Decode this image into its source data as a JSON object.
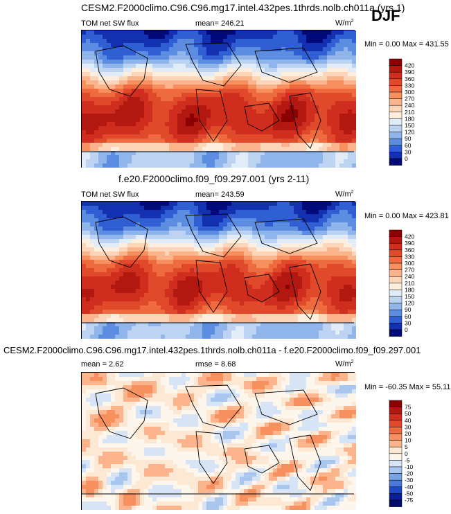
{
  "season": "DJF",
  "panels": [
    {
      "title": "CESM2.F2000climo.C96.C96.mg17.intel.432pes.1thrds.nolb.ch011a (yrs 1)",
      "variable": "TOM net SW flux",
      "stat_text": "mean= 246.21",
      "units": "W/m",
      "units_sup": "2",
      "minmax": "Min =   0.00 Max = 431.55",
      "levels": [
        "420",
        "390",
        "360",
        "330",
        "300",
        "270",
        "240",
        "210",
        "180",
        "150",
        "120",
        "90",
        "60",
        "30",
        "0"
      ],
      "colors": [
        "#8b0000",
        "#b2180f",
        "#cf2e1f",
        "#e04a2a",
        "#ee6a3f",
        "#f6915f",
        "#fbb48c",
        "#fdd5b8",
        "#fdeede",
        "#e2ecf8",
        "#bcd4f2",
        "#8fb5ea",
        "#5d8de0",
        "#2f5fd3",
        "#1230b0",
        "#020a7a"
      ],
      "chart_data": {
        "type": "heatmap",
        "field": "TOM net SW flux",
        "units": "W/m2",
        "mean": 246.21,
        "min": 0.0,
        "max": 431.55,
        "contour_levels": [
          0,
          30,
          60,
          90,
          120,
          150,
          180,
          210,
          240,
          270,
          300,
          330,
          360,
          390,
          420
        ]
      }
    },
    {
      "title": "f.e20.F2000climo.f09_f09.297.001 (yrs 2-11)",
      "variable": "TOM net SW flux",
      "stat_text": "mean= 243.59",
      "units": "W/m",
      "units_sup": "2",
      "minmax": "Min =   0.00 Max = 423.81",
      "levels": [
        "420",
        "390",
        "360",
        "330",
        "300",
        "270",
        "240",
        "210",
        "180",
        "150",
        "120",
        "90",
        "60",
        "30",
        "0"
      ],
      "colors": [
        "#8b0000",
        "#b2180f",
        "#cf2e1f",
        "#e04a2a",
        "#ee6a3f",
        "#f6915f",
        "#fbb48c",
        "#fdd5b8",
        "#fdeede",
        "#e2ecf8",
        "#bcd4f2",
        "#8fb5ea",
        "#5d8de0",
        "#2f5fd3",
        "#1230b0",
        "#020a7a"
      ],
      "chart_data": {
        "type": "heatmap",
        "field": "TOM net SW flux",
        "units": "W/m2",
        "mean": 243.59,
        "min": 0.0,
        "max": 423.81,
        "contour_levels": [
          0,
          30,
          60,
          90,
          120,
          150,
          180,
          210,
          240,
          270,
          300,
          330,
          360,
          390,
          420
        ]
      }
    },
    {
      "title": "CESM2.F2000climo.C96.C96.mg17.intel.432pes.1thrds.nolb.ch011a - f.e20.F2000climo.f09_f09.297.001",
      "stat_text": "mean =   2.62",
      "rmse_text": "rmse =   8.68",
      "units": "W/m",
      "units_sup": "2",
      "minmax": "Min = -60.35 Max =  55.11",
      "levels": [
        "75",
        "50",
        "40",
        "30",
        "20",
        "10",
        "5",
        "0",
        "-5",
        "-10",
        "-20",
        "-30",
        "-40",
        "-50",
        "-75"
      ],
      "colors": [
        "#8b0000",
        "#b2180f",
        "#cf2e1f",
        "#e04a2a",
        "#ee6a3f",
        "#f6915f",
        "#fbb48c",
        "#fde8d4",
        "#fdf6ec",
        "#d6e4f5",
        "#a9c6ee",
        "#7aa3e4",
        "#4b78d9",
        "#2148c4",
        "#0a1e9a",
        "#020a6a"
      ],
      "chart_data": {
        "type": "heatmap",
        "field": "difference",
        "units": "W/m2",
        "mean": 2.62,
        "rmse": 8.68,
        "min": -60.35,
        "max": 55.11,
        "contour_levels": [
          -75,
          -50,
          -40,
          -30,
          -20,
          -10,
          -5,
          0,
          5,
          10,
          20,
          30,
          40,
          50,
          75
        ]
      }
    }
  ]
}
